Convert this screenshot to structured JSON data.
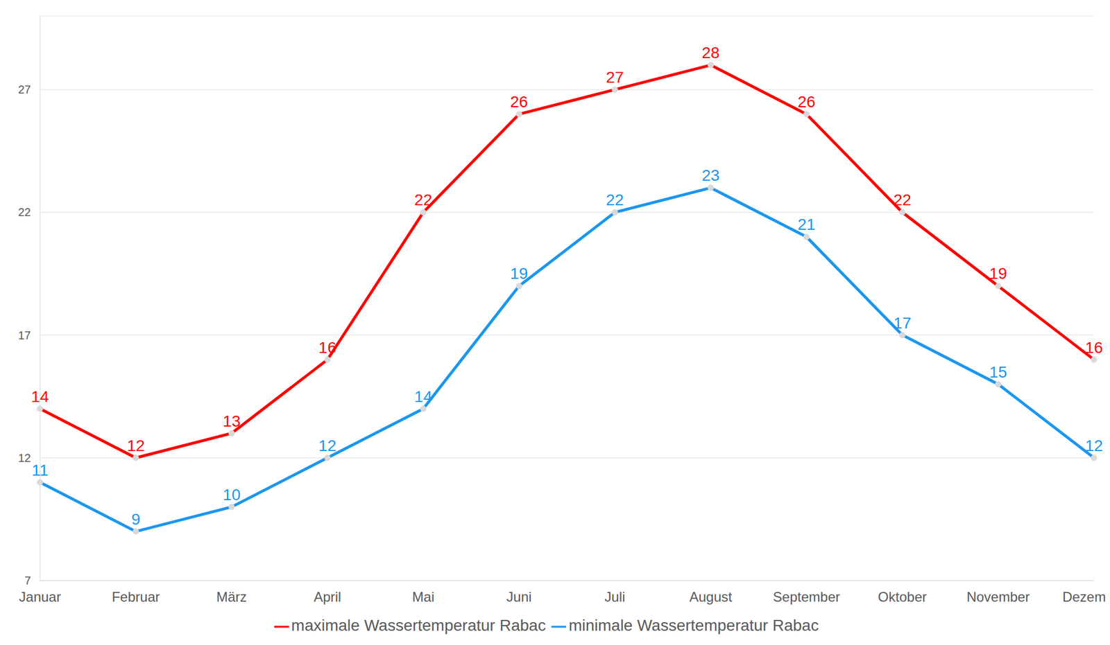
{
  "chart_data": {
    "type": "line",
    "categories": [
      "Januar",
      "Februar",
      "März",
      "April",
      "Mai",
      "Juni",
      "Juli",
      "August",
      "September",
      "Oktober",
      "November",
      "Dezember"
    ],
    "series": [
      {
        "name": "minimale Wassertemperatur Rabac",
        "color": "#1a96f0",
        "values": [
          11,
          9,
          10,
          12,
          14,
          19,
          22,
          23,
          21,
          17,
          15,
          12
        ]
      },
      {
        "name": "maximale Wassertemperatur Rabac",
        "color": "#ff0000",
        "values": [
          14,
          12,
          13,
          16,
          22,
          26,
          27,
          28,
          26,
          22,
          19,
          16
        ]
      }
    ],
    "ylim": [
      7,
      30
    ],
    "yticks": [
      7,
      12,
      17,
      22,
      27
    ],
    "grid": true,
    "data_labels": true,
    "legend": "bottom",
    "marker": "circle"
  }
}
